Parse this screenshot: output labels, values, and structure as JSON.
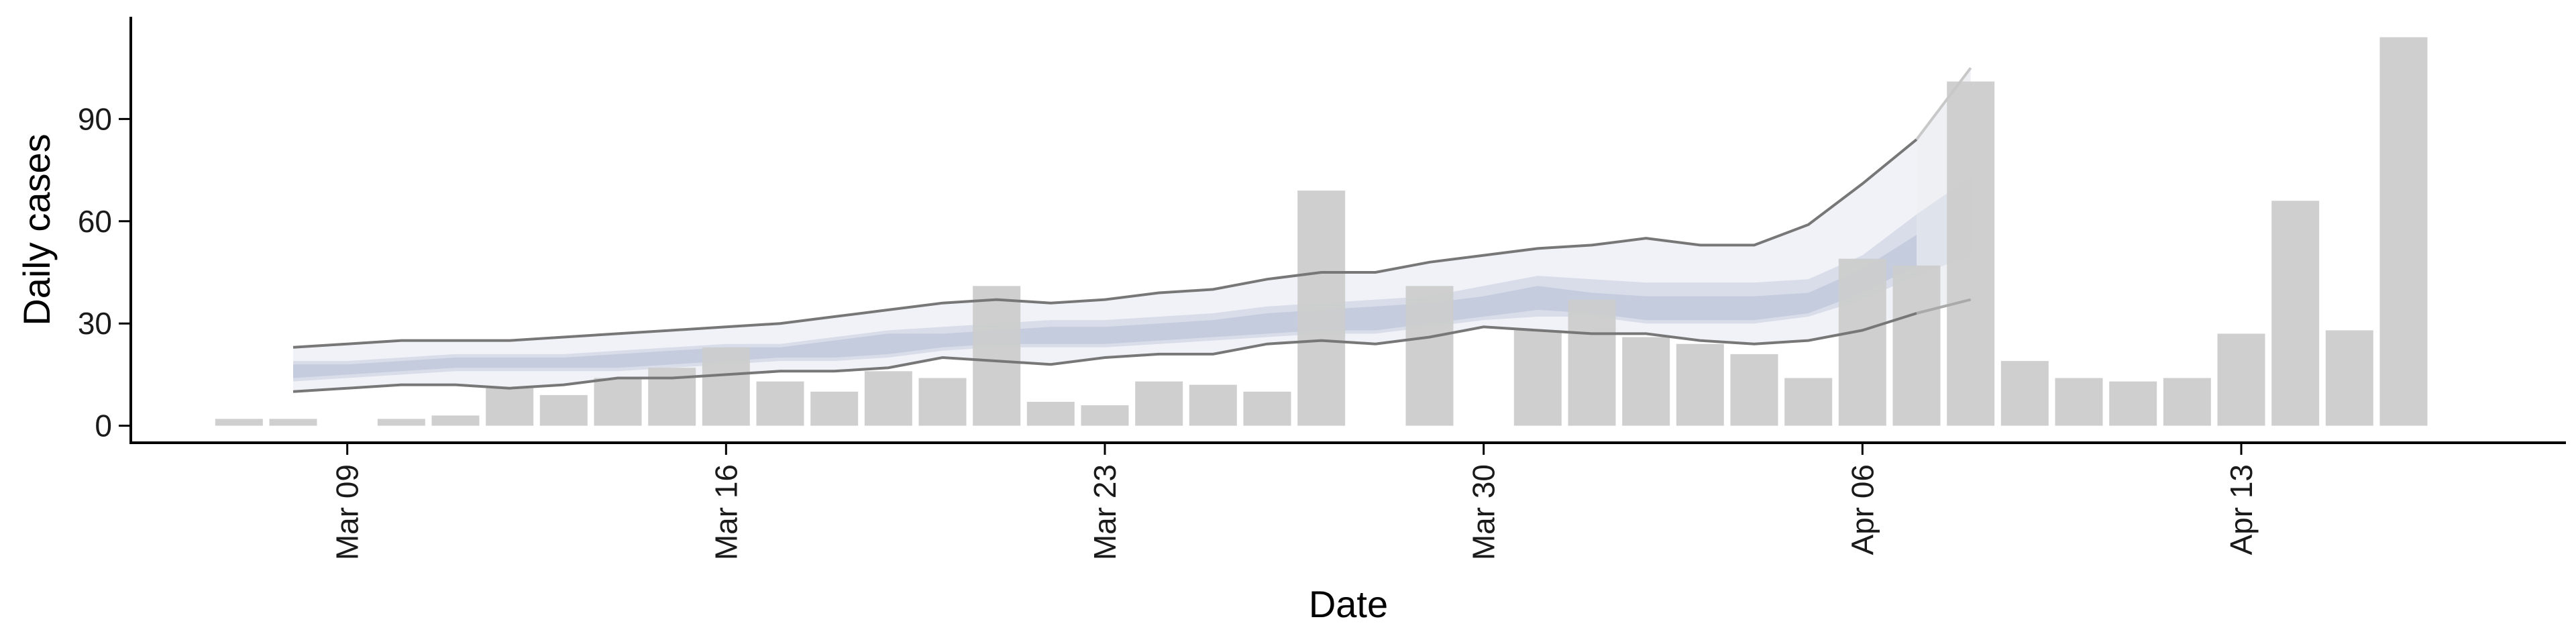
{
  "chart_data": {
    "type": "bar",
    "title": "",
    "xlabel": "Date",
    "ylabel": "Daily cases",
    "x_type": "date",
    "ylim": [
      -5,
      120
    ],
    "xlim": [
      "2020-03-05",
      "2020-04-19"
    ],
    "y_ticks": [
      0,
      30,
      60,
      90
    ],
    "x_ticks": [
      {
        "date": "2020-03-09",
        "label": "Mar 09"
      },
      {
        "date": "2020-03-16",
        "label": "Mar 16"
      },
      {
        "date": "2020-03-23",
        "label": "Mar 23"
      },
      {
        "date": "2020-03-30",
        "label": "Mar 30"
      },
      {
        "date": "2020-04-06",
        "label": "Apr 06"
      },
      {
        "date": "2020-04-13",
        "label": "Apr 13"
      }
    ],
    "grid": false,
    "legend": "none",
    "bar_color": "#cccccc",
    "bars": [
      {
        "date": "2020-03-07",
        "value": 2
      },
      {
        "date": "2020-03-08",
        "value": 2
      },
      {
        "date": "2020-03-10",
        "value": 2
      },
      {
        "date": "2020-03-11",
        "value": 3
      },
      {
        "date": "2020-03-12",
        "value": 11
      },
      {
        "date": "2020-03-13",
        "value": 9
      },
      {
        "date": "2020-03-14",
        "value": 14
      },
      {
        "date": "2020-03-15",
        "value": 17
      },
      {
        "date": "2020-03-16",
        "value": 23
      },
      {
        "date": "2020-03-17",
        "value": 13
      },
      {
        "date": "2020-03-18",
        "value": 10
      },
      {
        "date": "2020-03-19",
        "value": 16
      },
      {
        "date": "2020-03-20",
        "value": 14
      },
      {
        "date": "2020-03-21",
        "value": 41
      },
      {
        "date": "2020-03-22",
        "value": 7
      },
      {
        "date": "2020-03-23",
        "value": 6
      },
      {
        "date": "2020-03-24",
        "value": 13
      },
      {
        "date": "2020-03-25",
        "value": 12
      },
      {
        "date": "2020-03-26",
        "value": 10
      },
      {
        "date": "2020-03-27",
        "value": 69
      },
      {
        "date": "2020-03-29",
        "value": 41
      },
      {
        "date": "2020-03-31",
        "value": 28
      },
      {
        "date": "2020-04-01",
        "value": 37
      },
      {
        "date": "2020-04-02",
        "value": 26
      },
      {
        "date": "2020-04-03",
        "value": 24
      },
      {
        "date": "2020-04-04",
        "value": 21
      },
      {
        "date": "2020-04-05",
        "value": 14
      },
      {
        "date": "2020-04-06",
        "value": 49
      },
      {
        "date": "2020-04-07",
        "value": 47
      },
      {
        "date": "2020-04-08",
        "value": 101
      },
      {
        "date": "2020-04-09",
        "value": 19
      },
      {
        "date": "2020-04-10",
        "value": 14
      },
      {
        "date": "2020-04-11",
        "value": 13
      },
      {
        "date": "2020-04-12",
        "value": 14
      },
      {
        "date": "2020-04-13",
        "value": 27
      },
      {
        "date": "2020-04-14",
        "value": 66
      },
      {
        "date": "2020-04-15",
        "value": 28
      },
      {
        "date": "2020-04-16",
        "value": 114
      }
    ],
    "band_dates": [
      "2020-03-08",
      "2020-03-09",
      "2020-03-10",
      "2020-03-11",
      "2020-03-12",
      "2020-03-13",
      "2020-03-14",
      "2020-03-15",
      "2020-03-16",
      "2020-03-17",
      "2020-03-18",
      "2020-03-19",
      "2020-03-20",
      "2020-03-21",
      "2020-03-22",
      "2020-03-23",
      "2020-03-24",
      "2020-03-25",
      "2020-03-26",
      "2020-03-27",
      "2020-03-28",
      "2020-03-29",
      "2020-03-30",
      "2020-03-31",
      "2020-04-01",
      "2020-04-02",
      "2020-04-03",
      "2020-04-04",
      "2020-04-05",
      "2020-04-06",
      "2020-04-07"
    ],
    "bands": [
      {
        "role": "90% interval",
        "color": "#dfe3ed",
        "opacity": 0.45,
        "upper": [
          23,
          24,
          25,
          25,
          25,
          26,
          27,
          28,
          29,
          30,
          32,
          34,
          36,
          37,
          36,
          37,
          39,
          40,
          43,
          45,
          45,
          48,
          50,
          52,
          53,
          55,
          53,
          53,
          59,
          71,
          84
        ],
        "lower": [
          10,
          11,
          12,
          12,
          11,
          12,
          14,
          14,
          15,
          16,
          16,
          17,
          20,
          19,
          18,
          20,
          21,
          21,
          24,
          25,
          24,
          26,
          29,
          28,
          27,
          27,
          25,
          24,
          25,
          28,
          33
        ]
      },
      {
        "role": "50% interval",
        "color": "#c9cfe0",
        "opacity": 0.6,
        "upper": [
          19,
          19,
          20,
          21,
          21,
          21,
          22,
          23,
          24,
          24,
          26,
          28,
          29,
          30,
          31,
          31,
          32,
          33,
          35,
          36,
          37,
          38,
          41,
          44,
          43,
          42,
          42,
          42,
          43,
          50,
          62
        ],
        "lower": [
          13,
          14,
          15,
          16,
          16,
          16,
          16,
          17,
          18,
          19,
          19,
          20,
          22,
          23,
          23,
          23,
          24,
          25,
          26,
          27,
          27,
          29,
          31,
          32,
          32,
          30,
          30,
          30,
          32,
          37,
          44
        ]
      },
      {
        "role": "20% interval",
        "color": "#b4bdd6",
        "opacity": 0.55,
        "upper": [
          18,
          18,
          19,
          20,
          20,
          20,
          21,
          22,
          23,
          23,
          25,
          27,
          27,
          28,
          29,
          29,
          30,
          31,
          33,
          34,
          35,
          36,
          38,
          41,
          39,
          38,
          38,
          38,
          39,
          46,
          56
        ],
        "lower": [
          14,
          15,
          16,
          17,
          17,
          17,
          17,
          18,
          19,
          20,
          20,
          21,
          23,
          24,
          24,
          24,
          25,
          26,
          27,
          28,
          28,
          30,
          32,
          34,
          33,
          31,
          31,
          31,
          33,
          39,
          47
        ]
      }
    ],
    "bound_lines": [
      {
        "role": "upper bound",
        "color": "#777777",
        "values": [
          23,
          24,
          25,
          25,
          25,
          26,
          27,
          28,
          29,
          30,
          32,
          34,
          36,
          37,
          36,
          37,
          39,
          40,
          43,
          45,
          45,
          48,
          50,
          52,
          53,
          55,
          53,
          53,
          59,
          71,
          84
        ]
      },
      {
        "role": "lower bound",
        "color": "#777777",
        "values": [
          10,
          11,
          12,
          12,
          11,
          12,
          14,
          14,
          15,
          16,
          16,
          17,
          20,
          19,
          18,
          20,
          21,
          21,
          24,
          25,
          24,
          26,
          29,
          28,
          27,
          27,
          25,
          24,
          25,
          28,
          33
        ]
      }
    ],
    "forecast": {
      "dates": [
        "2020-04-07",
        "2020-04-08"
      ],
      "color": "#e7e9f0",
      "upper": [
        84,
        105
      ],
      "lower": [
        33,
        37
      ],
      "inner_upper": [
        62,
        73
      ],
      "inner_lower": [
        44,
        50
      ]
    }
  }
}
